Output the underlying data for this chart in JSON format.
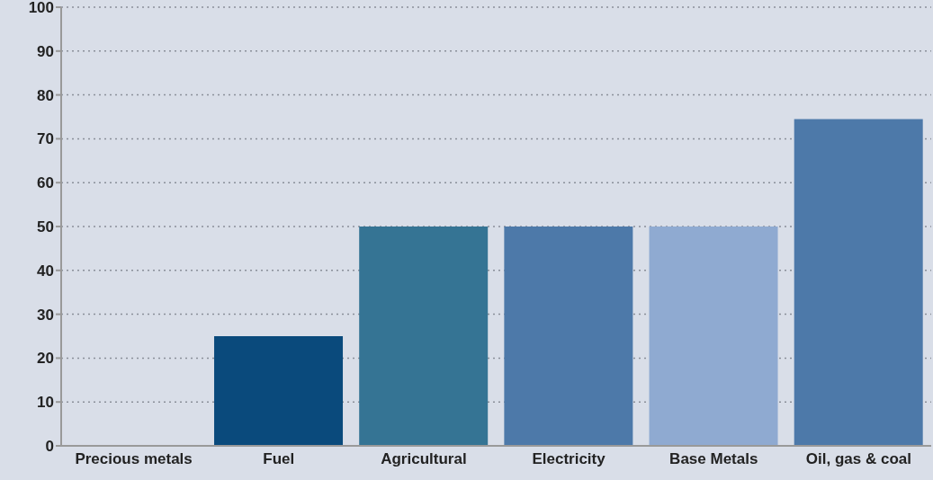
{
  "chart_data": {
    "type": "bar",
    "categories": [
      "Precious metals",
      "Fuel",
      "Agricultural",
      "Electricity",
      "Base Metals",
      "Oil, gas & coal"
    ],
    "values": [
      0,
      25,
      50,
      50,
      50,
      74.5
    ],
    "colors": [
      "#0a4a7c",
      "#0a4a7c",
      "#357494",
      "#4d79a9",
      "#8faad1",
      "#4d79a9"
    ],
    "ylim": [
      0,
      100
    ],
    "yticks": [
      0,
      10,
      20,
      30,
      40,
      50,
      60,
      70,
      80,
      90,
      100
    ],
    "grid": "y"
  }
}
